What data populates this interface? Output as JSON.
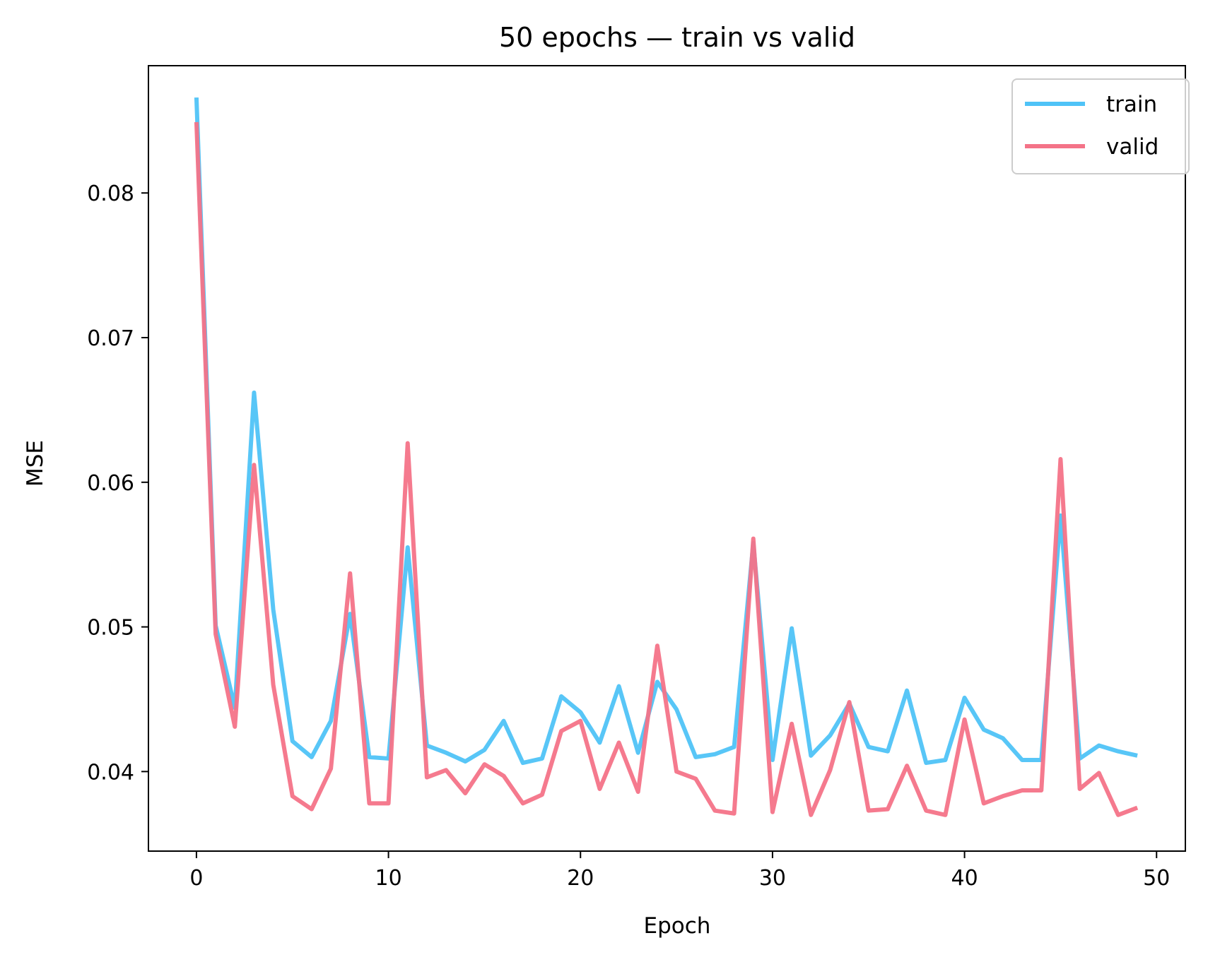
{
  "chart_data": {
    "type": "line",
    "title": "50 epochs — train vs valid",
    "xlabel": "Epoch",
    "ylabel": "MSE",
    "xlim": [
      -2.5,
      51.5
    ],
    "ylim": [
      0.0345,
      0.0888
    ],
    "xticks": [
      0,
      10,
      20,
      30,
      40,
      50
    ],
    "xtick_labels": [
      "0",
      "10",
      "20",
      "30",
      "40",
      "50"
    ],
    "yticks": [
      0.04,
      0.05,
      0.06,
      0.07,
      0.08
    ],
    "ytick_labels": [
      "0.04",
      "0.05",
      "0.06",
      "0.07",
      "0.08"
    ],
    "grid": false,
    "legend_position": "top-right",
    "x": [
      0,
      1,
      2,
      3,
      4,
      5,
      6,
      7,
      8,
      9,
      10,
      11,
      12,
      13,
      14,
      15,
      16,
      17,
      18,
      19,
      20,
      21,
      22,
      23,
      24,
      25,
      26,
      27,
      28,
      29,
      30,
      31,
      32,
      33,
      34,
      35,
      36,
      37,
      38,
      39,
      40,
      41,
      42,
      43,
      44,
      45,
      46,
      47,
      48,
      49
    ],
    "series": [
      {
        "name": "train",
        "color": "#4fc3f7",
        "values": [
          0.0866,
          0.0501,
          0.0444,
          0.0662,
          0.0512,
          0.0421,
          0.041,
          0.0435,
          0.0509,
          0.041,
          0.0409,
          0.0555,
          0.0418,
          0.0413,
          0.0407,
          0.0415,
          0.0435,
          0.0406,
          0.0409,
          0.0452,
          0.0441,
          0.042,
          0.0459,
          0.0413,
          0.0462,
          0.0443,
          0.041,
          0.0412,
          0.0417,
          0.0558,
          0.0408,
          0.0499,
          0.0411,
          0.0425,
          0.0447,
          0.0417,
          0.0414,
          0.0456,
          0.0406,
          0.0408,
          0.0451,
          0.0429,
          0.0423,
          0.0408,
          0.0408,
          0.0577,
          0.0409,
          0.0418,
          0.0414,
          0.0411
        ]
      },
      {
        "name": "valid",
        "color": "#f47388",
        "values": [
          0.0849,
          0.0495,
          0.0431,
          0.0612,
          0.046,
          0.0383,
          0.0374,
          0.0402,
          0.0537,
          0.0378,
          0.0378,
          0.0627,
          0.0396,
          0.0401,
          0.0385,
          0.0405,
          0.0397,
          0.0378,
          0.0384,
          0.0428,
          0.0435,
          0.0388,
          0.042,
          0.0386,
          0.0487,
          0.04,
          0.0395,
          0.0373,
          0.0371,
          0.0561,
          0.0372,
          0.0433,
          0.037,
          0.0401,
          0.0448,
          0.0373,
          0.0374,
          0.0404,
          0.0373,
          0.037,
          0.0436,
          0.0378,
          0.0383,
          0.0387,
          0.0387,
          0.0616,
          0.0388,
          0.0399,
          0.037,
          0.0375
        ]
      }
    ]
  }
}
